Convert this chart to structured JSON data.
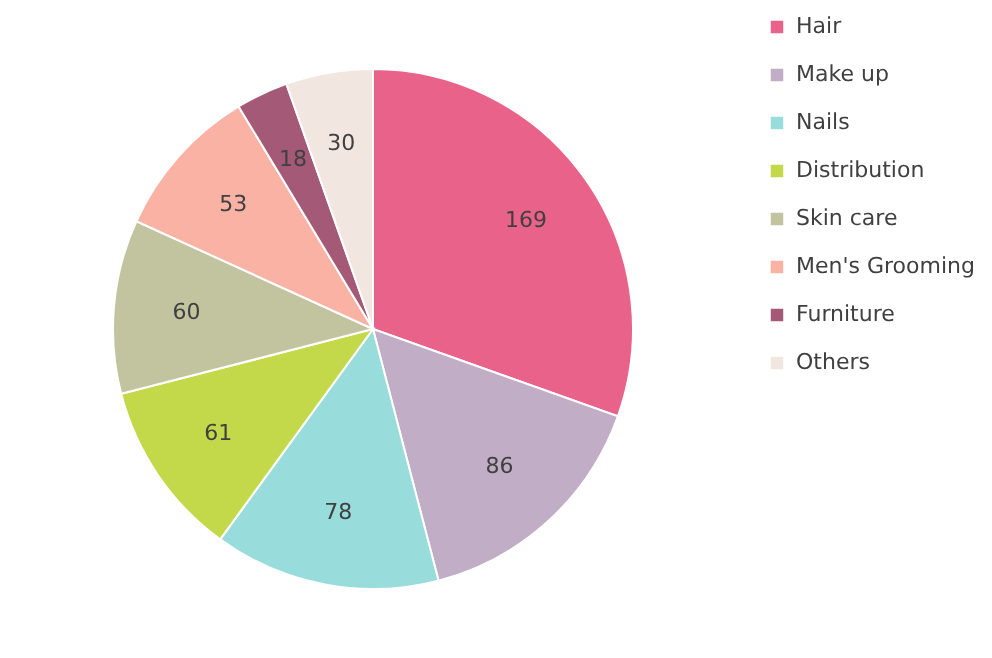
{
  "chart_data": {
    "type": "pie",
    "categories": [
      "Hair",
      "Make up",
      "Nails",
      "Distribution",
      "Skin care",
      "Men's Grooming",
      "Furniture",
      "Others"
    ],
    "values": [
      169,
      86,
      78,
      61,
      60,
      53,
      18,
      30
    ],
    "colors": [
      "#e8628a",
      "#c1aec6",
      "#99dcdc",
      "#c3d94a",
      "#c2c4a0",
      "#f9b2a4",
      "#a45a77",
      "#f2e6e0"
    ],
    "data_labels": true,
    "legend": "right"
  }
}
